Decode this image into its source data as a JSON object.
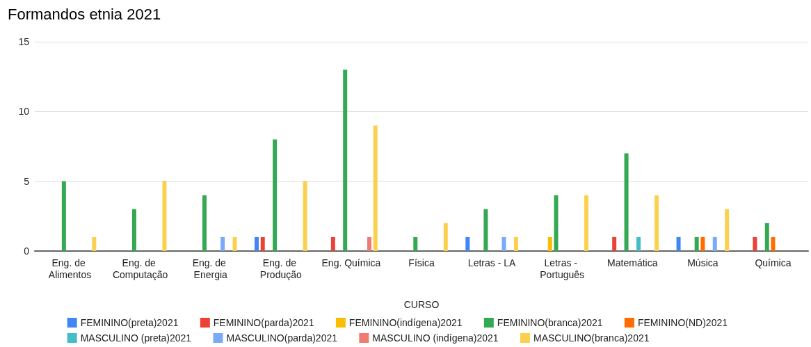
{
  "chart_data": {
    "type": "bar",
    "title": "Formandos etnia 2021",
    "xlabel": "CURSO",
    "categories": [
      "Eng. de Alimentos",
      "Eng. de Computação",
      "Eng. de Energia",
      "Eng. de Produção",
      "Eng. Química",
      "Física",
      "Letras - LA",
      "Letras - Português",
      "Matemática",
      "Música",
      "Química"
    ],
    "series": [
      {
        "name": "FEMININO(preta)2021",
        "color": "#4285f4",
        "values": [
          0,
          0,
          0,
          1,
          0,
          0,
          1,
          0,
          0,
          1,
          0
        ]
      },
      {
        "name": "FEMININO(parda)2021",
        "color": "#ea4335",
        "values": [
          0,
          0,
          0,
          1,
          1,
          0,
          0,
          0,
          1,
          0,
          1
        ]
      },
      {
        "name": "FEMININO(indígena)2021",
        "color": "#fbbc04",
        "values": [
          0,
          0,
          0,
          0,
          0,
          0,
          0,
          1,
          0,
          0,
          0
        ]
      },
      {
        "name": "FEMININO(branca)2021",
        "color": "#34a853",
        "values": [
          5,
          3,
          4,
          8,
          13,
          1,
          3,
          4,
          7,
          1,
          2
        ]
      },
      {
        "name": "FEMININO(ND)2021",
        "color": "#ff6d01",
        "values": [
          0,
          0,
          0,
          0,
          0,
          0,
          0,
          0,
          0,
          1,
          1
        ]
      },
      {
        "name": "MASCULINO (preta)2021",
        "color": "#46bdc6",
        "values": [
          0,
          0,
          0,
          0,
          0,
          0,
          0,
          0,
          1,
          0,
          0
        ]
      },
      {
        "name": "MASCULINO(parda)2021",
        "color": "#7baaf7",
        "values": [
          0,
          0,
          1,
          0,
          0,
          0,
          1,
          0,
          0,
          1,
          0
        ]
      },
      {
        "name": "MASCULINO (indígena)2021",
        "color": "#f07b72",
        "values": [
          0,
          0,
          0,
          0,
          1,
          0,
          0,
          0,
          0,
          0,
          0
        ]
      },
      {
        "name": "MASCULINO(branca)2021",
        "color": "#fcd04f",
        "values": [
          1,
          5,
          1,
          5,
          9,
          2,
          1,
          4,
          4,
          3,
          0
        ]
      }
    ],
    "ylim": [
      0,
      15
    ],
    "yticks": [
      0,
      5,
      10,
      15
    ],
    "grid": "y",
    "legend": "bottom"
  }
}
